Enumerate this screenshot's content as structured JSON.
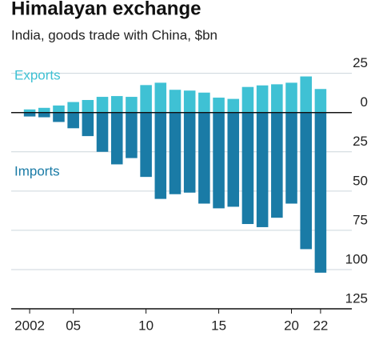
{
  "chart_data": {
    "type": "bar",
    "title": "Himalayan exchange",
    "subtitle": "India, goods trade with China, $bn",
    "categories": [
      "2002",
      null,
      null,
      "05",
      null,
      null,
      null,
      null,
      "10",
      null,
      null,
      null,
      null,
      "15",
      null,
      null,
      null,
      null,
      "20",
      null,
      "22"
    ],
    "series": [
      {
        "name": "Exports",
        "color": "#3fc1d4",
        "values": [
          2,
          3,
          4.5,
          6.7,
          8,
          10,
          10.5,
          10,
          17.5,
          19,
          14.5,
          14,
          12.7,
          9.5,
          8.7,
          16.3,
          17.3,
          18,
          19,
          23,
          15
        ]
      },
      {
        "name": "Imports",
        "color": "#1a7ba6",
        "values": [
          -2.5,
          -3,
          -6,
          -10,
          -15,
          -25,
          -33,
          -29,
          -41,
          -55,
          -52,
          -51,
          -58,
          -61,
          -60,
          -71,
          -73,
          -67,
          -58,
          -87,
          -102
        ]
      }
    ],
    "ylim": [
      -125,
      35
    ],
    "yticks": [
      25,
      0,
      {
        "value": -25,
        "label": "25"
      },
      {
        "value": -50,
        "label": "50"
      },
      {
        "value": -75,
        "label": "75"
      },
      {
        "value": -100,
        "label": "100"
      },
      {
        "value": -125,
        "label": "125"
      }
    ],
    "grid": true
  }
}
